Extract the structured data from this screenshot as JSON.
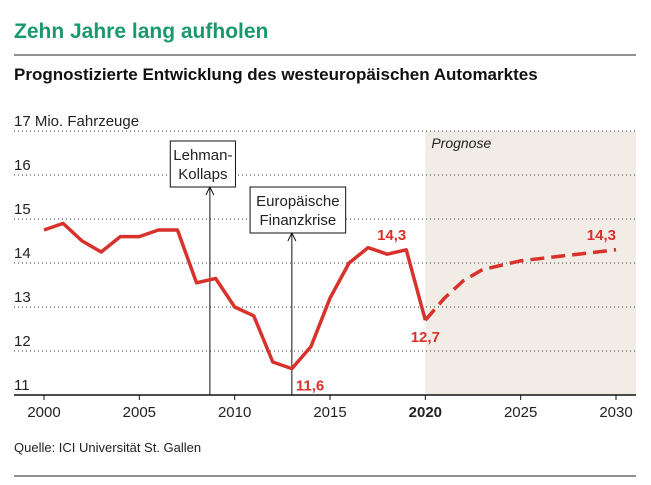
{
  "chart_data": {
    "type": "line",
    "title": "Zehn Jahre lang aufholen",
    "subtitle": "Prognostizierte Entwicklung des westeuropäischen Automarktes",
    "source": "Quelle: ICI Universität St. Gallen",
    "x": [
      2000,
      2001,
      2002,
      2003,
      2004,
      2005,
      2006,
      2007,
      2008,
      2009,
      2010,
      2011,
      2012,
      2013,
      2014,
      2015,
      2016,
      2017,
      2018,
      2019,
      2020,
      2021,
      2022,
      2023,
      2024,
      2025,
      2026,
      2027,
      2028,
      2029,
      2030
    ],
    "series": [
      {
        "color": "#d9312b",
        "dashed": false,
        "values": [
          14.75,
          14.9,
          14.5,
          14.25,
          14.6,
          14.6,
          14.75,
          14.75,
          13.55,
          13.65,
          13.0,
          12.8,
          11.75,
          11.6,
          12.1,
          13.2,
          14.0,
          14.35,
          14.2,
          14.3,
          12.7,
          null,
          null,
          null,
          null,
          null,
          null,
          null,
          null,
          null,
          null
        ],
        "value_labels": [
          null,
          null,
          null,
          null,
          null,
          null,
          null,
          null,
          null,
          null,
          null,
          null,
          null,
          "11,6",
          null,
          null,
          null,
          null,
          null,
          "14,3",
          "12,7",
          null,
          null,
          null,
          null,
          null,
          null,
          null,
          null,
          null,
          null
        ]
      },
      {
        "color": "#d9312b",
        "dashed": true,
        "values": [
          null,
          null,
          null,
          null,
          null,
          null,
          null,
          null,
          null,
          null,
          null,
          null,
          null,
          null,
          null,
          null,
          null,
          null,
          null,
          null,
          12.7,
          13.2,
          13.6,
          13.85,
          13.95,
          14.05,
          14.1,
          14.15,
          14.2,
          14.25,
          14.3
        ],
        "value_labels": [
          null,
          null,
          null,
          null,
          null,
          null,
          null,
          null,
          null,
          null,
          null,
          null,
          null,
          null,
          null,
          null,
          null,
          null,
          null,
          null,
          null,
          null,
          null,
          null,
          null,
          null,
          null,
          null,
          null,
          null,
          "14,3"
        ]
      }
    ],
    "xlim": [
      2000,
      2030
    ],
    "xticks": [
      2000,
      2005,
      2010,
      2015,
      2020,
      2025,
      2030
    ],
    "bold_xtick": 2020,
    "ylim": [
      11,
      17
    ],
    "yticks": [
      11,
      12,
      13,
      14,
      15,
      16,
      {
        "value": 17,
        "label": "17 Mio. Fahrzeuge"
      }
    ],
    "grid": true,
    "forecast": {
      "label": "Prognose",
      "from": 2020,
      "color": "#f1ece6"
    },
    "annotations": [
      {
        "x": 2008.7,
        "lines": [
          "Lehman-",
          "Kollaps"
        ]
      },
      {
        "x": 2013,
        "lines": [
          "Europäische",
          "Finanzkrise"
        ]
      }
    ]
  }
}
